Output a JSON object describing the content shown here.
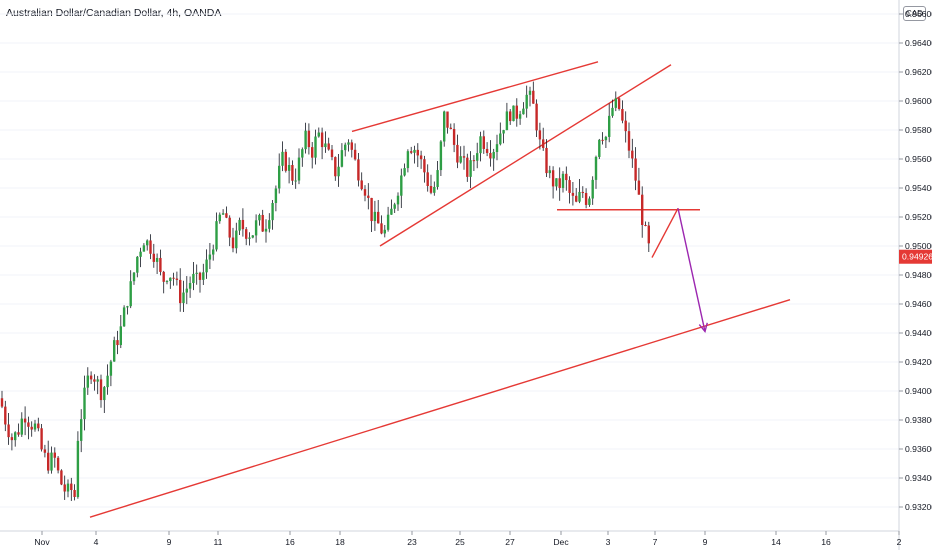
{
  "header": {
    "title": "Australian Dollar/Canadian Dollar, 4h, OANDA",
    "currency": "CAD"
  },
  "colors": {
    "bull": "#26a69a",
    "bull_body": "#2e9e45",
    "bear": "#c62828",
    "wick": "#131722",
    "trend": "#e53935",
    "projection": "#9c27b0",
    "last_price_bg": "#e53935"
  },
  "chart_data": {
    "type": "candlestick",
    "ylim": [
      0.9305,
      0.9685
    ],
    "y_ticks": [
      "0.96600",
      "0.96400",
      "0.96200",
      "0.96000",
      "0.95800",
      "0.95600",
      "0.95400",
      "0.95200",
      "0.95000",
      "0.94800",
      "0.94600",
      "0.94400",
      "0.94200",
      "0.94000",
      "0.93800",
      "0.93600",
      "0.93400",
      "0.93200"
    ],
    "last_price": "0.94926",
    "x_ticks": [
      "Nov",
      "4",
      "9",
      "11",
      "16",
      "18",
      "23",
      "25",
      "27",
      "Dec",
      "3",
      "7",
      "9",
      "14",
      "16",
      "2"
    ],
    "price_path": [
      [
        0,
        0.9395
      ],
      [
        6,
        0.9378
      ],
      [
        12,
        0.9367
      ],
      [
        18,
        0.9372
      ],
      [
        24,
        0.9385
      ],
      [
        30,
        0.9378
      ],
      [
        36,
        0.9375
      ],
      [
        42,
        0.9358
      ],
      [
        48,
        0.935
      ],
      [
        54,
        0.9355
      ],
      [
        60,
        0.9338
      ],
      [
        66,
        0.933
      ],
      [
        72,
        0.9332
      ],
      [
        74,
        0.932
      ],
      [
        78,
        0.937
      ],
      [
        84,
        0.9395
      ],
      [
        90,
        0.9415
      ],
      [
        96,
        0.9408
      ],
      [
        102,
        0.9398
      ],
      [
        108,
        0.9412
      ],
      [
        114,
        0.943
      ],
      [
        120,
        0.944
      ],
      [
        126,
        0.946
      ],
      [
        132,
        0.9475
      ],
      [
        138,
        0.9495
      ],
      [
        144,
        0.9505
      ],
      [
        150,
        0.95
      ],
      [
        156,
        0.9492
      ],
      [
        162,
        0.9475
      ],
      [
        168,
        0.9482
      ],
      [
        174,
        0.9478
      ],
      [
        180,
        0.9465
      ],
      [
        186,
        0.947
      ],
      [
        192,
        0.9478
      ],
      [
        198,
        0.9475
      ],
      [
        204,
        0.9482
      ],
      [
        210,
        0.9495
      ],
      [
        216,
        0.951
      ],
      [
        222,
        0.9525
      ],
      [
        228,
        0.951
      ],
      [
        234,
        0.95
      ],
      [
        240,
        0.9515
      ],
      [
        246,
        0.951
      ],
      [
        252,
        0.9508
      ],
      [
        258,
        0.9518
      ],
      [
        264,
        0.9512
      ],
      [
        270,
        0.9525
      ],
      [
        276,
        0.954
      ],
      [
        282,
        0.956
      ],
      [
        288,
        0.9555
      ],
      [
        294,
        0.9545
      ],
      [
        300,
        0.956
      ],
      [
        306,
        0.9575
      ],
      [
        312,
        0.9565
      ],
      [
        318,
        0.9578
      ],
      [
        324,
        0.957
      ],
      [
        330,
        0.956
      ],
      [
        336,
        0.955
      ],
      [
        342,
        0.9565
      ],
      [
        348,
        0.9575
      ],
      [
        354,
        0.956
      ],
      [
        360,
        0.9548
      ],
      [
        366,
        0.9538
      ],
      [
        372,
        0.952
      ],
      [
        378,
        0.9515
      ],
      [
        384,
        0.9508
      ],
      [
        390,
        0.952
      ],
      [
        396,
        0.9535
      ],
      [
        402,
        0.955
      ],
      [
        408,
        0.957
      ],
      [
        414,
        0.9568
      ],
      [
        420,
        0.956
      ],
      [
        426,
        0.9548
      ],
      [
        432,
        0.9535
      ],
      [
        438,
        0.955
      ],
      [
        444,
        0.959
      ],
      [
        450,
        0.958
      ],
      [
        456,
        0.9565
      ],
      [
        462,
        0.9558
      ],
      [
        468,
        0.955
      ],
      [
        474,
        0.956
      ],
      [
        480,
        0.9575
      ],
      [
        486,
        0.957
      ],
      [
        492,
        0.9565
      ],
      [
        498,
        0.9575
      ],
      [
        504,
        0.9585
      ],
      [
        510,
        0.9592
      ],
      [
        516,
        0.959
      ],
      [
        522,
        0.9598
      ],
      [
        528,
        0.9605
      ],
      [
        534,
        0.9595
      ],
      [
        540,
        0.957
      ],
      [
        546,
        0.9555
      ],
      [
        552,
        0.9545
      ],
      [
        558,
        0.954
      ],
      [
        564,
        0.9548
      ],
      [
        570,
        0.9535
      ],
      [
        576,
        0.9528
      ],
      [
        582,
        0.9538
      ],
      [
        588,
        0.953
      ],
      [
        594,
        0.9555
      ],
      [
        600,
        0.958
      ],
      [
        606,
        0.9575
      ],
      [
        612,
        0.9595
      ],
      [
        618,
        0.9598
      ],
      [
        624,
        0.958
      ],
      [
        630,
        0.9565
      ],
      [
        636,
        0.9545
      ],
      [
        642,
        0.952
      ],
      [
        648,
        0.95
      ],
      [
        652,
        0.9492
      ]
    ],
    "trendlines": [
      {
        "name": "wedge-upper",
        "from": [
          352,
          0.9579
        ],
        "to": [
          598,
          0.9627
        ],
        "color": "trend"
      },
      {
        "name": "wedge-lower",
        "from": [
          380,
          0.95
        ],
        "to": [
          671,
          0.9625
        ],
        "color": "trend"
      },
      {
        "name": "support-neckline",
        "from": [
          557,
          0.9525
        ],
        "to": [
          700,
          0.9525
        ],
        "color": "trend"
      },
      {
        "name": "retest-leg",
        "from": [
          652,
          0.9492
        ],
        "to": [
          678,
          0.9526
        ],
        "color": "trend"
      },
      {
        "name": "long-term-trendline",
        "from": [
          90,
          0.9313
        ],
        "to": [
          790,
          0.9463
        ],
        "color": "trend"
      },
      {
        "name": "projection-arrow",
        "from": [
          678,
          0.9526
        ],
        "to": [
          705,
          0.9441
        ],
        "color": "projection"
      }
    ]
  }
}
